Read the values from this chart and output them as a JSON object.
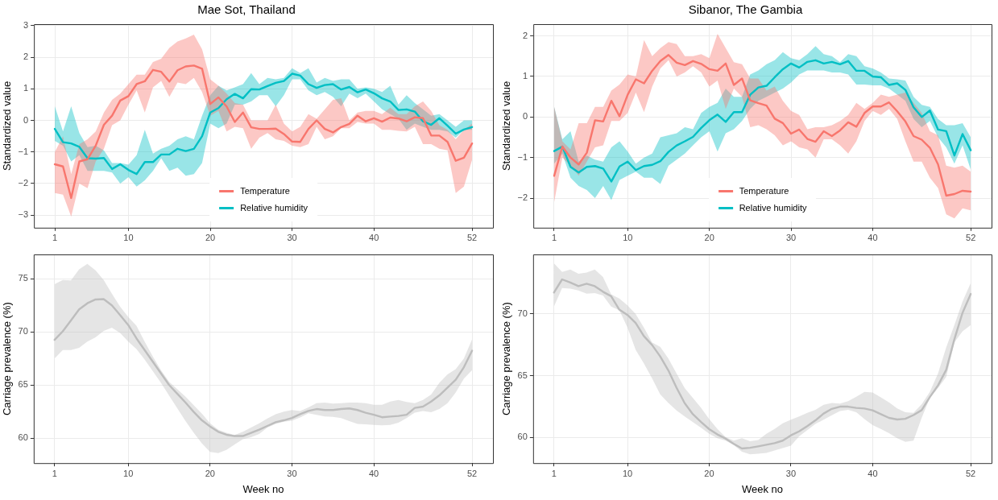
{
  "chart_data": [
    {
      "type": "line",
      "title": "Mae Sot, Thailand",
      "ylabel": "Standardized value",
      "x": [
        1,
        2,
        3,
        4,
        5,
        6,
        7,
        8,
        9,
        10,
        11,
        12,
        13,
        14,
        15,
        16,
        17,
        18,
        19,
        20,
        21,
        22,
        23,
        24,
        25,
        26,
        27,
        28,
        29,
        30,
        31,
        32,
        33,
        34,
        35,
        36,
        37,
        38,
        39,
        40,
        41,
        42,
        43,
        44,
        45,
        46,
        47,
        48,
        49,
        50,
        51,
        52
      ],
      "xlim": [
        -1.55,
        54.55
      ],
      "xticks": [
        1,
        10,
        20,
        30,
        40,
        52
      ],
      "ylim": [
        -3.4,
        3.05
      ],
      "yticks": [
        -3,
        -2,
        -1,
        0,
        1,
        2,
        3
      ],
      "grid": true,
      "legend": "bottom",
      "series": [
        {
          "name": "Temperature",
          "color": "#f8766d",
          "values": [
            -1.39,
            -1.46,
            -2.46,
            -1.3,
            -1.23,
            -0.8,
            -0.14,
            0.15,
            0.63,
            0.77,
            1.15,
            1.24,
            1.6,
            1.54,
            1.23,
            1.59,
            1.71,
            1.74,
            1.64,
            0.52,
            0.73,
            0.44,
            -0.05,
            0.25,
            -0.22,
            -0.27,
            -0.27,
            -0.26,
            -0.43,
            -0.67,
            -0.68,
            -0.27,
            0,
            -0.27,
            -0.38,
            -0.21,
            -0.11,
            0.15,
            -0.03,
            0.07,
            -0.04,
            0.09,
            0.06,
            -0.03,
            0.1,
            0.07,
            -0.48,
            -0.48,
            -0.68,
            -1.28,
            -1.18,
            -0.73
          ],
          "lower": [
            -2.3,
            -2.35,
            -3.05,
            -2.0,
            -2.15,
            -1.3,
            -0.9,
            -0.15,
            0.0,
            0.5,
            0.95,
            0.25,
            1.05,
            1.25,
            0.75,
            1.2,
            1.15,
            1.35,
            0.9,
            0.15,
            0.3,
            -0.35,
            -0.2,
            -0.25,
            -0.9,
            -0.55,
            -0.4,
            -0.6,
            -0.65,
            -0.8,
            -0.85,
            -0.75,
            -0.2,
            -0.6,
            -0.5,
            -0.25,
            -0.25,
            -0.05,
            -0.1,
            -0.1,
            -0.3,
            -0.3,
            -0.33,
            -0.35,
            -0.2,
            -0.75,
            -0.75,
            -0.9,
            -0.95,
            -2.3,
            -2.1,
            -1.25
          ],
          "upper": [
            -1.0,
            -0.5,
            -1.7,
            -0.75,
            -0.6,
            -0.35,
            0.25,
            0.65,
            0.85,
            1.15,
            1.45,
            1.45,
            1.85,
            1.95,
            2.3,
            2.5,
            2.6,
            2.72,
            2.25,
            1.3,
            1.1,
            0.85,
            0.55,
            0.5,
            0.0,
            0.0,
            0.0,
            0.5,
            -0.1,
            -0.35,
            -0.2,
            0.2,
            0.05,
            0.35,
            0.65,
            0.7,
            0.0,
            0.25,
            0.3,
            0.3,
            0.2,
            0.4,
            0.2,
            0.2,
            0.45,
            0.6,
            0.3,
            -0.15,
            -0.3,
            -0.6,
            -0.3,
            -0.1
          ]
        },
        {
          "name": "Relative humidity",
          "color": "#00bfc4",
          "values": [
            -0.27,
            -0.69,
            -0.73,
            -0.84,
            -1.2,
            -1.21,
            -1.19,
            -1.54,
            -1.39,
            -1.57,
            -1.7,
            -1.32,
            -1.32,
            -1.08,
            -1.08,
            -0.9,
            -0.97,
            -0.9,
            -0.5,
            0.25,
            0.39,
            0.67,
            0.84,
            0.7,
            0.99,
            0.98,
            1.09,
            1.19,
            1.25,
            1.48,
            1.42,
            1.15,
            1.03,
            1.12,
            1.15,
            0.98,
            1.06,
            0.89,
            0.98,
            0.86,
            0.7,
            0.6,
            0.33,
            0.35,
            0.28,
            -0.03,
            -0.14,
            0.07,
            -0.17,
            -0.42,
            -0.29,
            -0.21
          ],
          "lower": [
            -0.65,
            -0.8,
            -1.3,
            -1.1,
            -1.6,
            -1.6,
            -1.6,
            -1.65,
            -2.0,
            -1.8,
            -2.1,
            -1.9,
            -1.6,
            -1.2,
            -1.6,
            -1.5,
            -1.75,
            -1.7,
            -1.35,
            -0.1,
            -0.25,
            -0.1,
            0.5,
            0.5,
            0.6,
            0.8,
            0.8,
            0.45,
            0.8,
            1.3,
            1.3,
            0.95,
            0.8,
            0.9,
            0.75,
            0.45,
            0.85,
            0.7,
            0.85,
            0.6,
            0.35,
            0.2,
            0.05,
            -0.3,
            -0.1,
            -0.2,
            -0.3,
            -0.3,
            -0.35,
            -0.55,
            -0.3,
            -0.3
          ],
          "upper": [
            0.45,
            -0.35,
            0.45,
            -0.4,
            -0.85,
            -0.8,
            -0.95,
            -1.35,
            -1.35,
            -1.4,
            -1.1,
            -0.3,
            -1.05,
            -0.9,
            -0.8,
            -0.6,
            -0.5,
            -0.6,
            0.15,
            0.8,
            1.1,
            0.95,
            1.05,
            1.15,
            1.5,
            1.15,
            1.35,
            1.3,
            1.35,
            1.65,
            1.5,
            1.65,
            1.2,
            1.35,
            1.25,
            1.3,
            1.3,
            1.0,
            1.05,
            1.0,
            0.9,
            1.1,
            0.5,
            0.8,
            0.55,
            0.35,
            0.15,
            0.2,
            0.0,
            -0.2,
            0.0,
            0.0
          ]
        }
      ]
    },
    {
      "type": "line",
      "title": "Sibanor, The Gambia",
      "ylabel": "Standardized value",
      "x": [
        1,
        2,
        3,
        4,
        5,
        6,
        7,
        8,
        9,
        10,
        11,
        12,
        13,
        14,
        15,
        16,
        17,
        18,
        19,
        20,
        21,
        22,
        23,
        24,
        25,
        26,
        27,
        28,
        29,
        30,
        31,
        32,
        33,
        34,
        35,
        36,
        37,
        38,
        39,
        40,
        41,
        42,
        43,
        44,
        45,
        46,
        47,
        48,
        49,
        50,
        51,
        52
      ],
      "xlim": [
        -1.55,
        54.55
      ],
      "xticks": [
        1,
        10,
        20,
        30,
        40,
        52
      ],
      "ylim": [
        -2.73,
        2.29
      ],
      "yticks": [
        -2,
        -1,
        0,
        1,
        2
      ],
      "grid": true,
      "legend": "bottom",
      "series": [
        {
          "name": "Temperature",
          "color": "#f8766d",
          "values": [
            -1.45,
            -0.73,
            -1.0,
            -1.17,
            -0.88,
            -0.08,
            -0.11,
            0.4,
            0.02,
            0.55,
            0.93,
            0.83,
            1.14,
            1.38,
            1.53,
            1.34,
            1.28,
            1.38,
            1.31,
            1.18,
            1.14,
            1.32,
            0.79,
            0.95,
            0.41,
            0.34,
            0.28,
            -0.04,
            -0.15,
            -0.41,
            -0.31,
            -0.54,
            -0.61,
            -0.35,
            -0.47,
            -0.33,
            -0.13,
            -0.24,
            0.1,
            0.26,
            0.26,
            0.36,
            0.14,
            -0.11,
            -0.47,
            -0.56,
            -0.76,
            -1.17,
            -1.94,
            -1.9,
            -1.82,
            -1.84
          ],
          "lower": [
            -2.1,
            -1.0,
            -1.2,
            -1.45,
            -1.1,
            -0.75,
            -0.7,
            -0.1,
            -0.1,
            0.1,
            0.6,
            0.12,
            0.75,
            1.2,
            1.4,
            1.0,
            1.1,
            1.25,
            1.1,
            0.75,
            0.9,
            0.2,
            0.7,
            0.5,
            -0.25,
            -0.2,
            -0.3,
            -0.45,
            -0.7,
            -0.6,
            -0.75,
            -0.8,
            -1.0,
            -0.55,
            -0.55,
            -0.7,
            -0.9,
            -0.6,
            -0.1,
            0.15,
            0.05,
            0.2,
            -0.05,
            -0.6,
            -1.1,
            -1.1,
            -1.5,
            -1.75,
            -2.4,
            -2.5,
            -2.25,
            -2.3
          ],
          "upper": [
            0.25,
            -0.6,
            -0.8,
            -0.15,
            -0.15,
            0.25,
            0.25,
            0.65,
            0.8,
            1.05,
            1.0,
            1.9,
            1.5,
            1.7,
            1.85,
            1.8,
            1.5,
            1.5,
            1.55,
            1.45,
            2.05,
            1.7,
            1.35,
            1.3,
            0.95,
            0.95,
            0.65,
            0.75,
            0.4,
            0.15,
            0.05,
            -0.3,
            -0.25,
            -0.25,
            -0.2,
            -0.1,
            0.05,
            0.35,
            0.2,
            0.35,
            0.55,
            0.5,
            0.55,
            0.6,
            0.35,
            0.1,
            -0.35,
            -0.45,
            -1.2,
            -1.25,
            -1.2,
            -1.35
          ]
        },
        {
          "name": "Relative humidity",
          "color": "#00bfc4",
          "values": [
            -0.84,
            -0.73,
            -1.23,
            -1.37,
            -1.23,
            -1.21,
            -1.27,
            -1.59,
            -1.22,
            -1.1,
            -1.31,
            -1.21,
            -1.18,
            -1.09,
            -0.86,
            -0.7,
            -0.6,
            -0.49,
            -0.27,
            -0.08,
            0.06,
            -0.12,
            0.12,
            0.12,
            0.55,
            0.73,
            0.77,
            0.98,
            1.18,
            1.32,
            1.22,
            1.36,
            1.4,
            1.32,
            1.36,
            1.3,
            1.38,
            1.14,
            1.14,
            1.0,
            0.98,
            0.79,
            0.83,
            0.67,
            0.24,
            0,
            0.16,
            -0.31,
            -0.35,
            -0.95,
            -0.42,
            -0.82
          ],
          "lower": [
            -1.15,
            -0.9,
            -1.5,
            -1.7,
            -1.8,
            -2.0,
            -1.7,
            -2.05,
            -1.55,
            -1.45,
            -1.35,
            -1.5,
            -1.5,
            -1.65,
            -1.2,
            -1.05,
            -0.9,
            -0.7,
            -0.5,
            -0.35,
            -0.85,
            -0.4,
            -0.3,
            -0.1,
            0.2,
            0.4,
            0.5,
            0.6,
            0.7,
            0.85,
            1.05,
            1.15,
            1.15,
            1.15,
            1.1,
            1.1,
            1.05,
            0.8,
            0.8,
            0.78,
            0.78,
            0.7,
            0.55,
            0.4,
            -0.05,
            -0.25,
            -0.1,
            -0.5,
            -0.75,
            -1.15,
            -0.7,
            -1.3
          ],
          "upper": [
            0.25,
            -0.55,
            -0.35,
            -1.1,
            -0.95,
            -1.05,
            -1.1,
            -0.75,
            -0.6,
            -0.85,
            -1.15,
            -1.0,
            -0.9,
            -0.5,
            -0.45,
            -0.4,
            -0.25,
            -0.3,
            0.1,
            0.25,
            0.35,
            0.7,
            0.5,
            0.5,
            1.05,
            1.15,
            1.3,
            1.4,
            1.6,
            1.45,
            1.4,
            1.55,
            1.75,
            1.55,
            1.5,
            1.35,
            1.55,
            1.5,
            1.25,
            1.2,
            1.1,
            0.95,
            0.93,
            0.9,
            0.5,
            0.3,
            0.25,
            -0.05,
            -0.2,
            -0.2,
            -0.15,
            -0.5
          ]
        }
      ]
    },
    {
      "type": "line",
      "xlabel": "Week no",
      "ylabel": "Carriage prevalence (%)",
      "x": [
        1,
        2,
        3,
        4,
        5,
        6,
        7,
        8,
        9,
        10,
        11,
        12,
        13,
        14,
        15,
        16,
        17,
        18,
        19,
        20,
        21,
        22,
        23,
        24,
        25,
        26,
        27,
        28,
        29,
        30,
        31,
        32,
        33,
        34,
        35,
        36,
        37,
        38,
        39,
        40,
        41,
        42,
        43,
        44,
        45,
        46,
        47,
        48,
        49,
        50,
        51,
        52
      ],
      "xlim": [
        -1.55,
        54.55
      ],
      "xticks": [
        1,
        10,
        20,
        30,
        40,
        52
      ],
      "ylim": [
        57.65,
        77.3
      ],
      "yticks": [
        60,
        65,
        70,
        75
      ],
      "grid": true,
      "series": [
        {
          "color": "#bdbdbd",
          "values": [
            69.26,
            70.06,
            71.09,
            72.12,
            72.7,
            73.06,
            73.09,
            72.5,
            71.6,
            70.65,
            69.4,
            68.3,
            67.2,
            66.1,
            65.0,
            64.18,
            63.35,
            62.47,
            61.68,
            61.1,
            60.6,
            60.32,
            60.2,
            60.2,
            60.5,
            60.8,
            61.15,
            61.5,
            61.68,
            61.9,
            62.26,
            62.56,
            62.74,
            62.65,
            62.65,
            62.74,
            62.8,
            62.65,
            62.4,
            62.2,
            61.97,
            62.03,
            62.09,
            62.2,
            62.85,
            62.97,
            63.44,
            64.03,
            64.76,
            65.5,
            66.68,
            68.24
          ],
          "lower": [
            67.5,
            68.3,
            68.3,
            68.5,
            69.1,
            69.5,
            70.1,
            70.4,
            69.9,
            69.1,
            68.4,
            67.4,
            66.3,
            65.2,
            64.0,
            62.8,
            61.6,
            60.5,
            59.5,
            58.7,
            58.6,
            58.9,
            59.4,
            59.9,
            60.1,
            60.4,
            61.0,
            61.35,
            61.55,
            61.65,
            61.95,
            62.35,
            62.2,
            62.05,
            62.0,
            61.9,
            61.6,
            61.35,
            61.3,
            61.25,
            61.2,
            61.25,
            61.45,
            61.9,
            62.4,
            62.55,
            62.45,
            62.75,
            63.3,
            64.3,
            65.6,
            66.4
          ],
          "upper": [
            74.5,
            74.9,
            74.85,
            75.9,
            76.4,
            75.8,
            74.9,
            73.6,
            72.4,
            71.4,
            70.6,
            69.1,
            67.7,
            66.4,
            65.3,
            64.6,
            63.9,
            63.1,
            62.3,
            61.4,
            60.8,
            60.5,
            60.3,
            60.6,
            61.0,
            61.4,
            61.85,
            62.25,
            62.5,
            62.65,
            62.55,
            62.9,
            63.3,
            63.35,
            63.25,
            63.3,
            63.35,
            63.35,
            63.3,
            63.15,
            63.15,
            63.45,
            63.6,
            63.4,
            63.3,
            63.6,
            64.1,
            65.2,
            66.0,
            66.5,
            67.5,
            69.3
          ]
        }
      ]
    },
    {
      "type": "line",
      "xlabel": "Week no",
      "ylabel": "Carriage prevalence (%)",
      "x": [
        1,
        2,
        3,
        4,
        5,
        6,
        7,
        8,
        9,
        10,
        11,
        12,
        13,
        14,
        15,
        16,
        17,
        18,
        19,
        20,
        21,
        22,
        23,
        24,
        25,
        26,
        27,
        28,
        29,
        30,
        31,
        32,
        33,
        34,
        35,
        36,
        37,
        38,
        39,
        40,
        41,
        42,
        43,
        44,
        45,
        46,
        47,
        48,
        49,
        50,
        51,
        52
      ],
      "xlim": [
        -1.55,
        54.55
      ],
      "xticks": [
        1,
        10,
        20,
        30,
        40,
        52
      ],
      "ylim": [
        57.93,
        74.82
      ],
      "yticks": [
        60,
        65,
        70
      ],
      "grid": true,
      "series": [
        {
          "color": "#bdbdbd",
          "values": [
            71.74,
            72.8,
            72.55,
            72.25,
            72.45,
            72.25,
            71.8,
            71.44,
            70.35,
            69.92,
            69.27,
            68.21,
            67.5,
            66.57,
            65.43,
            64.04,
            62.78,
            61.89,
            61.26,
            60.68,
            60.25,
            59.92,
            59.49,
            59.12,
            59.17,
            59.29,
            59.42,
            59.55,
            59.75,
            60.18,
            60.5,
            60.93,
            61.39,
            61.94,
            62.32,
            62.5,
            62.5,
            62.4,
            62.35,
            62.2,
            61.89,
            61.59,
            61.46,
            61.52,
            61.82,
            62.22,
            63.28,
            64.22,
            65.48,
            67.95,
            70.1,
            71.62
          ],
          "lower": [
            70.6,
            72.1,
            72.05,
            71.9,
            71.65,
            71.7,
            71.5,
            70.6,
            70.3,
            68.9,
            67.1,
            66.0,
            64.8,
            63.5,
            62.8,
            62.2,
            61.7,
            61.25,
            60.8,
            60.3,
            59.95,
            59.75,
            59.4,
            58.85,
            58.65,
            58.7,
            58.75,
            58.95,
            59.15,
            59.35,
            60.1,
            60.6,
            61.1,
            61.45,
            61.8,
            62.15,
            62.25,
            62.05,
            61.5,
            61.0,
            60.7,
            60.35,
            59.95,
            59.65,
            59.75,
            61.6,
            63.2,
            64.0,
            64.9,
            67.7,
            68.6,
            69.1
          ],
          "upper": [
            74.1,
            73.4,
            73.6,
            73.25,
            73.35,
            73.6,
            73.0,
            71.6,
            71.25,
            70.7,
            70.0,
            68.9,
            67.7,
            67.35,
            66.4,
            65.2,
            64.0,
            63.2,
            62.4,
            61.5,
            60.7,
            60.05,
            59.75,
            59.95,
            59.7,
            59.8,
            60.3,
            60.7,
            61.15,
            61.45,
            61.7,
            62.0,
            62.25,
            62.65,
            62.8,
            62.75,
            62.95,
            63.3,
            63.7,
            63.65,
            63.25,
            62.85,
            62.35,
            62.05,
            62.0,
            62.7,
            63.7,
            65.2,
            67.3,
            69.1,
            71.0,
            72.5
          ]
        }
      ]
    }
  ]
}
